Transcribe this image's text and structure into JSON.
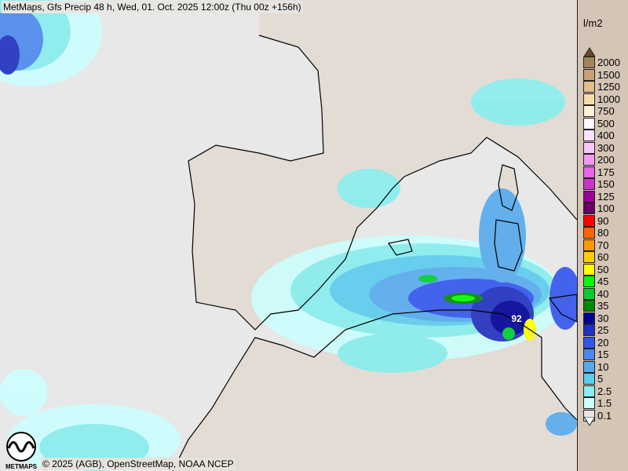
{
  "title": "MetMaps, Gfs Precip 48 h, Wed, 01. Oct. 2025 12:00z (Thu 00z +156h)",
  "credit": "© 2025 (AGB), OpenStreetMap, NOAA NCEP",
  "logo_text": "METMAPS",
  "map": {
    "max_label": "92",
    "colors": {
      "sea": "#e8e8e8",
      "land": "#e3dcd5",
      "coast": "#000000"
    }
  },
  "legend": {
    "unit": "l/m2",
    "top_arrow_color": "#6b4a2a",
    "bottom_arrow_color": "#ffffff",
    "items": [
      {
        "label": "2000",
        "color": "#a4835f"
      },
      {
        "label": "1500",
        "color": "#c9a07a"
      },
      {
        "label": "1250",
        "color": "#e4bf8a"
      },
      {
        "label": "1000",
        "color": "#f3e0a6"
      },
      {
        "label": "750",
        "color": "#fbf2d6"
      },
      {
        "label": "500",
        "color": "#fdf9ff"
      },
      {
        "label": "400",
        "color": "#fde4fd"
      },
      {
        "label": "300",
        "color": "#fbc6fb"
      },
      {
        "label": "200",
        "color": "#f798f7"
      },
      {
        "label": "175",
        "color": "#e864e8"
      },
      {
        "label": "150",
        "color": "#cc33cc"
      },
      {
        "label": "125",
        "color": "#990099"
      },
      {
        "label": "100",
        "color": "#660066"
      },
      {
        "label": "90",
        "color": "#ff0000"
      },
      {
        "label": "80",
        "color": "#ff6600"
      },
      {
        "label": "70",
        "color": "#ff9900"
      },
      {
        "label": "60",
        "color": "#ffcc00"
      },
      {
        "label": "50",
        "color": "#ffff00"
      },
      {
        "label": "45",
        "color": "#00ff00"
      },
      {
        "label": "40",
        "color": "#00cc33"
      },
      {
        "label": "35",
        "color": "#008800"
      },
      {
        "label": "30",
        "color": "#000099"
      },
      {
        "label": "25",
        "color": "#1f30bf"
      },
      {
        "label": "20",
        "color": "#3355ee"
      },
      {
        "label": "15",
        "color": "#4a88ee"
      },
      {
        "label": "10",
        "color": "#55aaee"
      },
      {
        "label": "5",
        "color": "#5cccee"
      },
      {
        "label": "2.5",
        "color": "#88eeee"
      },
      {
        "label": "1.5",
        "color": "#ccffff"
      },
      {
        "label": "0.1",
        "color": "#e6e6e6"
      }
    ]
  }
}
